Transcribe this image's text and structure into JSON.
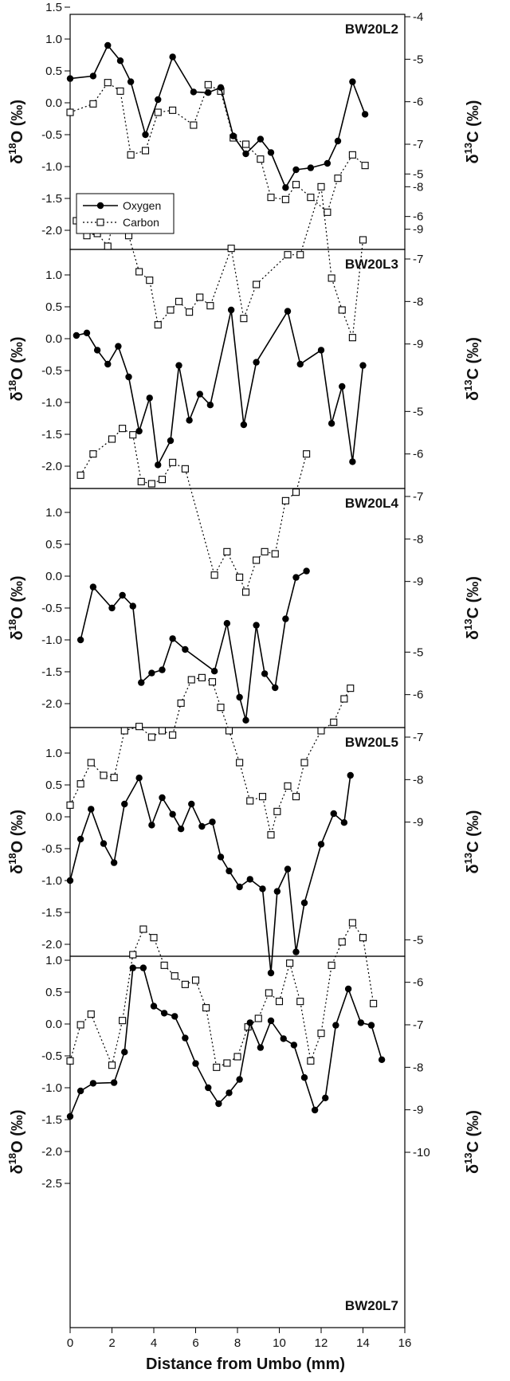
{
  "chart_data": {
    "type": "line",
    "xlabel": "Distance from Umbo (mm)",
    "x_ticks": [
      "0",
      "2",
      "4",
      "6",
      "8",
      "10",
      "12",
      "14",
      "16"
    ],
    "xlim": [
      0,
      16
    ],
    "left_label_parts": [
      "δ",
      "18",
      "O (‰)"
    ],
    "right_label_parts": [
      "δ",
      "13",
      "C (‰)"
    ],
    "legend": {
      "placement": "lower-left of first panel",
      "oxygen": "Oxygen",
      "carbon": "Carbon"
    },
    "colors": {
      "line": "#000000",
      "marker_fill": "#ffffff",
      "background": "#ffffff"
    },
    "panels": [
      {
        "label": "BW20L2",
        "label_position": "top-right",
        "show_legend": true,
        "o_range": [
          -2.5,
          1.5
        ],
        "c_range": [
          -10,
          -4
        ],
        "o_ticks": [
          "1.5",
          "1.0",
          "0.5",
          "0.0",
          "-0.5",
          "-1.0",
          "-1.5",
          "-2.0"
        ],
        "c_ticks": [
          "-4",
          "-5",
          "-6",
          "-7",
          "-8",
          "-9"
        ],
        "oxygen": [
          [
            0,
            0.38
          ],
          [
            1.1,
            0.42
          ],
          [
            1.8,
            0.9
          ],
          [
            2.4,
            0.66
          ],
          [
            2.9,
            0.33
          ],
          [
            3.6,
            -0.5
          ],
          [
            4.2,
            0.05
          ],
          [
            4.9,
            0.72
          ],
          [
            5.9,
            0.17
          ],
          [
            6.6,
            0.16
          ],
          [
            7.2,
            0.24
          ],
          [
            7.8,
            -0.52
          ],
          [
            8.4,
            -0.8
          ],
          [
            9.1,
            -0.57
          ],
          [
            9.6,
            -0.78
          ],
          [
            10.3,
            -1.33
          ],
          [
            10.8,
            -1.05
          ],
          [
            11.5,
            -1.02
          ],
          [
            12.3,
            -0.95
          ],
          [
            12.8,
            -0.6
          ],
          [
            13.5,
            0.33
          ],
          [
            14.1,
            -0.18
          ]
        ],
        "carbon": [
          [
            0,
            -6.25
          ],
          [
            1.1,
            -6.05
          ],
          [
            1.8,
            -5.55
          ],
          [
            2.4,
            -5.75
          ],
          [
            2.9,
            -7.25
          ],
          [
            3.6,
            -7.15
          ],
          [
            4.2,
            -6.25
          ],
          [
            4.9,
            -6.2
          ],
          [
            5.9,
            -6.55
          ],
          [
            6.6,
            -5.6
          ],
          [
            7.2,
            -5.75
          ],
          [
            7.8,
            -6.85
          ],
          [
            8.4,
            -7.0
          ],
          [
            9.1,
            -7.35
          ],
          [
            9.6,
            -8.25
          ],
          [
            10.3,
            -8.3
          ],
          [
            10.8,
            -7.95
          ],
          [
            11.5,
            -8.25
          ],
          [
            12.3,
            -8.6
          ],
          [
            12.8,
            -7.8
          ],
          [
            13.5,
            -7.25
          ],
          [
            14.1,
            -7.5
          ]
        ]
      },
      {
        "label": "BW20L3",
        "label_position": "top-right",
        "show_legend": false,
        "o_range": [
          -2.5,
          1.5
        ],
        "c_range": [
          -10,
          -4
        ],
        "o_ticks": [
          "1.0",
          "0.5",
          "0.0",
          "-0.5",
          "-1.0",
          "-1.5",
          "-2.0"
        ],
        "c_ticks": [
          "-5",
          "-6",
          "-7",
          "-8",
          "-9"
        ],
        "oxygen": [
          [
            0.3,
            0.05
          ],
          [
            0.8,
            0.09
          ],
          [
            1.3,
            -0.18
          ],
          [
            1.8,
            -0.4
          ],
          [
            2.3,
            -0.12
          ],
          [
            2.8,
            -0.6
          ],
          [
            3.3,
            -1.45
          ],
          [
            3.8,
            -0.93
          ],
          [
            4.2,
            -1.98
          ],
          [
            4.8,
            -1.6
          ],
          [
            5.2,
            -0.42
          ],
          [
            5.7,
            -1.28
          ],
          [
            6.2,
            -0.87
          ],
          [
            6.7,
            -1.04
          ],
          [
            7.7,
            0.45
          ],
          [
            8.3,
            -1.35
          ],
          [
            8.9,
            -0.37
          ],
          [
            10.4,
            0.43
          ],
          [
            11.0,
            -0.4
          ],
          [
            12.0,
            -0.18
          ],
          [
            12.5,
            -1.33
          ],
          [
            13.0,
            -0.75
          ],
          [
            13.5,
            -1.93
          ],
          [
            14.0,
            -0.42
          ]
        ],
        "carbon": [
          [
            0.3,
            -6.1
          ],
          [
            0.8,
            -6.45
          ],
          [
            1.3,
            -6.4
          ],
          [
            1.8,
            -6.7
          ],
          [
            2.3,
            -5.55
          ],
          [
            2.8,
            -6.45
          ],
          [
            3.3,
            -7.3
          ],
          [
            3.8,
            -7.5
          ],
          [
            4.2,
            -8.55
          ],
          [
            4.8,
            -8.2
          ],
          [
            5.2,
            -8.0
          ],
          [
            5.7,
            -8.25
          ],
          [
            6.2,
            -7.9
          ],
          [
            6.7,
            -8.1
          ],
          [
            7.7,
            -6.75
          ],
          [
            8.3,
            -8.4
          ],
          [
            8.9,
            -7.6
          ],
          [
            10.4,
            -6.9
          ],
          [
            11.0,
            -6.9
          ],
          [
            12.0,
            -5.3
          ],
          [
            12.5,
            -7.45
          ],
          [
            13.0,
            -8.2
          ],
          [
            13.5,
            -8.85
          ],
          [
            14.0,
            -6.55
          ]
        ]
      },
      {
        "label": "BW20L4",
        "label_position": "top-right",
        "show_legend": false,
        "o_range": [
          -2.5,
          1.5
        ],
        "c_range": [
          -10,
          -4
        ],
        "o_ticks": [
          "1.0",
          "0.5",
          "0.0",
          "-0.5",
          "-1.0",
          "-1.5",
          "-2.0"
        ],
        "c_ticks": [
          "-5",
          "-6",
          "-7",
          "-8",
          "-9"
        ],
        "oxygen": [
          [
            0.5,
            -1.0
          ],
          [
            1.1,
            -0.17
          ],
          [
            2.0,
            -0.5
          ],
          [
            2.5,
            -0.3
          ],
          [
            3.0,
            -0.47
          ],
          [
            3.4,
            -1.67
          ],
          [
            3.9,
            -1.52
          ],
          [
            4.4,
            -1.47
          ],
          [
            4.9,
            -0.98
          ],
          [
            5.5,
            -1.15
          ],
          [
            6.9,
            -1.49
          ],
          [
            7.5,
            -0.74
          ],
          [
            8.1,
            -1.9
          ],
          [
            8.4,
            -2.26
          ],
          [
            8.9,
            -0.77
          ],
          [
            9.3,
            -1.53
          ],
          [
            9.8,
            -1.75
          ],
          [
            10.3,
            -0.67
          ],
          [
            10.8,
            -0.02
          ],
          [
            11.3,
            0.08
          ]
        ],
        "carbon": [
          [
            0.5,
            -6.5
          ],
          [
            1.1,
            -6.0
          ],
          [
            2.0,
            -5.65
          ],
          [
            2.5,
            -5.4
          ],
          [
            3.0,
            -5.55
          ],
          [
            3.4,
            -6.65
          ],
          [
            3.9,
            -6.7
          ],
          [
            4.4,
            -6.6
          ],
          [
            4.9,
            -6.2
          ],
          [
            5.5,
            -6.35
          ],
          [
            6.9,
            -8.85
          ],
          [
            7.5,
            -8.3
          ],
          [
            8.1,
            -8.9
          ],
          [
            8.4,
            -9.25
          ],
          [
            8.9,
            -8.5
          ],
          [
            9.3,
            -8.3
          ],
          [
            9.8,
            -8.35
          ],
          [
            10.3,
            -7.1
          ],
          [
            10.8,
            -6.9
          ],
          [
            11.3,
            -6.0
          ]
        ]
      },
      {
        "label": "BW20L5",
        "label_position": "top-right",
        "show_legend": false,
        "o_range": [
          -2.5,
          1.5
        ],
        "c_range": [
          -10,
          -4
        ],
        "o_ticks": [
          "1.0",
          "0.5",
          "0.0",
          "-0.5",
          "-1.0",
          "-1.5",
          "-2.0"
        ],
        "c_ticks": [
          "-5",
          "-6",
          "-7",
          "-8",
          "-9"
        ],
        "oxygen": [
          [
            0,
            -1.0
          ],
          [
            0.5,
            -0.35
          ],
          [
            1.0,
            0.12
          ],
          [
            1.6,
            -0.42
          ],
          [
            2.1,
            -0.72
          ],
          [
            2.6,
            0.2
          ],
          [
            3.3,
            0.61
          ],
          [
            3.9,
            -0.13
          ],
          [
            4.4,
            0.3
          ],
          [
            4.9,
            0.04
          ],
          [
            5.3,
            -0.19
          ],
          [
            5.8,
            0.2
          ],
          [
            6.3,
            -0.15
          ],
          [
            6.8,
            -0.08
          ],
          [
            7.2,
            -0.63
          ],
          [
            7.6,
            -0.85
          ],
          [
            8.1,
            -1.1
          ],
          [
            8.6,
            -0.98
          ],
          [
            9.2,
            -1.13
          ],
          [
            9.6,
            -2.45
          ],
          [
            9.9,
            -1.17
          ],
          [
            10.4,
            -0.82
          ],
          [
            10.8,
            -2.12
          ],
          [
            11.2,
            -1.35
          ],
          [
            12.0,
            -0.43
          ],
          [
            12.6,
            0.05
          ],
          [
            13.1,
            -0.09
          ],
          [
            13.4,
            0.65
          ]
        ],
        "carbon": [
          [
            0,
            -8.6
          ],
          [
            0.5,
            -8.1
          ],
          [
            1.0,
            -7.6
          ],
          [
            1.6,
            -7.9
          ],
          [
            2.1,
            -7.95
          ],
          [
            2.6,
            -6.85
          ],
          [
            3.3,
            -6.75
          ],
          [
            3.9,
            -7.0
          ],
          [
            4.4,
            -6.85
          ],
          [
            4.9,
            -6.95
          ],
          [
            5.3,
            -6.2
          ],
          [
            5.8,
            -5.65
          ],
          [
            6.3,
            -5.6
          ],
          [
            6.8,
            -5.7
          ],
          [
            7.2,
            -6.3
          ],
          [
            7.6,
            -6.85
          ],
          [
            8.1,
            -7.6
          ],
          [
            8.6,
            -8.5
          ],
          [
            9.2,
            -8.4
          ],
          [
            9.6,
            -9.3
          ],
          [
            9.9,
            -8.75
          ],
          [
            10.4,
            -8.15
          ],
          [
            10.8,
            -8.4
          ],
          [
            11.2,
            -7.6
          ],
          [
            12.0,
            -6.85
          ],
          [
            12.6,
            -6.65
          ],
          [
            13.1,
            -6.1
          ],
          [
            13.4,
            -5.85
          ]
        ]
      },
      {
        "label": "BW20L7",
        "label_position": "bottom-right",
        "show_legend": false,
        "o_range": [
          -2.5,
          1.5
        ],
        "c_range": [
          -10,
          -4
        ],
        "o_ticks": [
          "1.0",
          "0.5",
          "0.0",
          "-0.5",
          "-1.0",
          "-1.5",
          "-2.0",
          "-2.5"
        ],
        "c_ticks": [
          "-5",
          "-6",
          "-7",
          "-8",
          "-9",
          "-10"
        ],
        "oxygen": [
          [
            0,
            -1.45
          ],
          [
            0.5,
            -1.05
          ],
          [
            1.1,
            -0.93
          ],
          [
            2.1,
            -0.92
          ],
          [
            2.6,
            -0.44
          ],
          [
            3.0,
            0.88
          ],
          [
            3.5,
            0.88
          ],
          [
            4.0,
            0.28
          ],
          [
            4.5,
            0.17
          ],
          [
            5.0,
            0.12
          ],
          [
            5.5,
            -0.22
          ],
          [
            6.0,
            -0.62
          ],
          [
            6.6,
            -1.0
          ],
          [
            7.1,
            -1.25
          ],
          [
            7.6,
            -1.08
          ],
          [
            8.1,
            -0.87
          ],
          [
            8.6,
            0.02
          ],
          [
            9.1,
            -0.37
          ],
          [
            9.6,
            0.05
          ],
          [
            10.2,
            -0.23
          ],
          [
            10.7,
            -0.33
          ],
          [
            11.2,
            -0.84
          ],
          [
            11.7,
            -1.35
          ],
          [
            12.2,
            -1.16
          ],
          [
            12.7,
            -0.02
          ],
          [
            13.3,
            0.55
          ],
          [
            13.9,
            0.02
          ],
          [
            14.4,
            -0.02
          ],
          [
            14.9,
            -0.56
          ]
        ],
        "carbon": [
          [
            0,
            -7.85
          ],
          [
            0.5,
            -7.0
          ],
          [
            1.0,
            -6.75
          ],
          [
            2.0,
            -7.95
          ],
          [
            2.5,
            -6.9
          ],
          [
            3.0,
            -5.35
          ],
          [
            3.5,
            -4.75
          ],
          [
            4.0,
            -4.95
          ],
          [
            4.5,
            -5.6
          ],
          [
            5.0,
            -5.85
          ],
          [
            5.5,
            -6.05
          ],
          [
            6.0,
            -5.95
          ],
          [
            6.5,
            -6.6
          ],
          [
            7.0,
            -8.0
          ],
          [
            7.5,
            -7.9
          ],
          [
            8.0,
            -7.75
          ],
          [
            8.5,
            -7.05
          ],
          [
            9.0,
            -6.85
          ],
          [
            9.5,
            -6.25
          ],
          [
            10.0,
            -6.45
          ],
          [
            10.5,
            -5.55
          ],
          [
            11.0,
            -6.45
          ],
          [
            11.5,
            -7.85
          ],
          [
            12.0,
            -7.2
          ],
          [
            12.5,
            -5.6
          ],
          [
            13.0,
            -5.05
          ],
          [
            13.5,
            -4.6
          ],
          [
            14.0,
            -4.95
          ],
          [
            14.5,
            -6.5
          ]
        ]
      }
    ]
  }
}
